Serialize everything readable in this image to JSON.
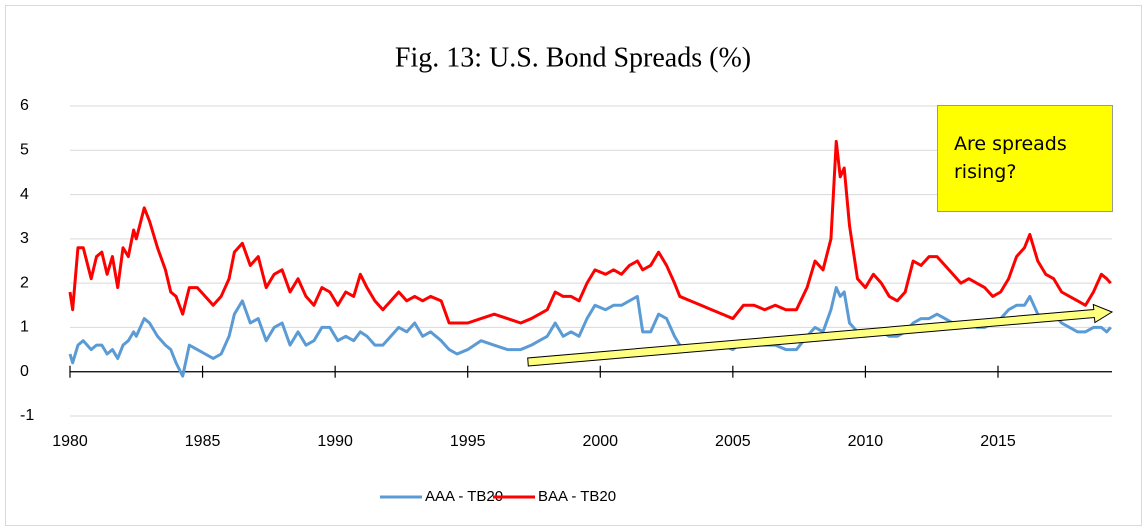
{
  "chart_data": {
    "type": "line",
    "title": "Fig. 13: U.S. Bond Spreads (%)",
    "annotation": "Are spreads rising?",
    "x": [
      1980.0,
      1980.1,
      1980.3,
      1980.5,
      1980.8,
      1981.0,
      1981.2,
      1981.4,
      1981.6,
      1981.8,
      1982.0,
      1982.2,
      1982.4,
      1982.5,
      1982.8,
      1983.0,
      1983.3,
      1983.6,
      1983.8,
      1984.0,
      1984.25,
      1984.5,
      1984.8,
      1985.1,
      1985.4,
      1985.7,
      1986.0,
      1986.2,
      1986.5,
      1986.8,
      1987.1,
      1987.4,
      1987.7,
      1988.0,
      1988.3,
      1988.6,
      1988.9,
      1989.2,
      1989.5,
      1989.8,
      1990.1,
      1990.4,
      1990.7,
      1990.95,
      1991.2,
      1991.5,
      1991.8,
      1992.1,
      1992.4,
      1992.7,
      1993.0,
      1993.3,
      1993.6,
      1994.0,
      1994.3,
      1994.6,
      1995.0,
      1995.5,
      1996.0,
      1996.5,
      1997.0,
      1997.4,
      1997.7,
      1998.0,
      1998.3,
      1998.6,
      1998.9,
      1999.2,
      1999.5,
      1999.8,
      2000.2,
      2000.5,
      2000.8,
      2001.1,
      2001.4,
      2001.6,
      2001.9,
      2002.2,
      2002.5,
      2002.8,
      2003.0,
      2003.4,
      2003.8,
      2004.2,
      2004.6,
      2005.0,
      2005.4,
      2005.8,
      2006.2,
      2006.6,
      2007.0,
      2007.4,
      2007.8,
      2008.1,
      2008.4,
      2008.7,
      2008.9,
      2009.05,
      2009.2,
      2009.4,
      2009.7,
      2010.0,
      2010.3,
      2010.6,
      2010.9,
      2011.2,
      2011.5,
      2011.8,
      2012.1,
      2012.4,
      2012.7,
      2013.0,
      2013.3,
      2013.6,
      2013.9,
      2014.2,
      2014.5,
      2014.8,
      2015.1,
      2015.4,
      2015.7,
      2016.0,
      2016.2,
      2016.5,
      2016.8,
      2017.1,
      2017.4,
      2017.7,
      2018.0,
      2018.3,
      2018.6,
      2018.9,
      2019.1,
      2019.25
    ],
    "series": [
      {
        "name": "AAA - TB20",
        "color": "#5b9bd5",
        "values": [
          0.4,
          0.2,
          0.6,
          0.7,
          0.5,
          0.6,
          0.6,
          0.4,
          0.5,
          0.3,
          0.6,
          0.7,
          0.9,
          0.8,
          1.2,
          1.1,
          0.8,
          0.6,
          0.5,
          0.2,
          -0.1,
          0.6,
          0.5,
          0.4,
          0.3,
          0.4,
          0.8,
          1.3,
          1.6,
          1.1,
          1.2,
          0.7,
          1.0,
          1.1,
          0.6,
          0.9,
          0.6,
          0.7,
          1.0,
          1.0,
          0.7,
          0.8,
          0.7,
          0.9,
          0.8,
          0.6,
          0.6,
          0.8,
          1.0,
          0.9,
          1.1,
          0.8,
          0.9,
          0.7,
          0.5,
          0.4,
          0.5,
          0.7,
          0.6,
          0.5,
          0.5,
          0.6,
          0.7,
          0.8,
          1.1,
          0.8,
          0.9,
          0.8,
          1.2,
          1.5,
          1.4,
          1.5,
          1.5,
          1.6,
          1.7,
          0.9,
          0.9,
          1.3,
          1.2,
          0.8,
          0.6,
          0.5,
          0.6,
          0.6,
          0.6,
          0.5,
          0.7,
          0.6,
          0.6,
          0.6,
          0.5,
          0.5,
          0.8,
          1.0,
          0.9,
          1.4,
          1.9,
          1.7,
          1.8,
          1.1,
          0.9,
          0.8,
          0.9,
          0.9,
          0.8,
          0.8,
          0.9,
          1.1,
          1.2,
          1.2,
          1.3,
          1.2,
          1.1,
          1.1,
          1.1,
          1.0,
          1.0,
          1.1,
          1.2,
          1.4,
          1.5,
          1.5,
          1.7,
          1.3,
          1.2,
          1.3,
          1.1,
          1.0,
          0.9,
          0.9,
          1.0,
          1.0,
          0.9,
          1.0
        ]
      },
      {
        "name": "BAA - TB20",
        "color": "#ff0000",
        "values": [
          1.8,
          1.4,
          2.8,
          2.8,
          2.1,
          2.6,
          2.7,
          2.2,
          2.6,
          1.9,
          2.8,
          2.6,
          3.2,
          3.0,
          3.7,
          3.4,
          2.8,
          2.3,
          1.8,
          1.7,
          1.3,
          1.9,
          1.9,
          1.7,
          1.5,
          1.7,
          2.1,
          2.7,
          2.9,
          2.4,
          2.6,
          1.9,
          2.2,
          2.3,
          1.8,
          2.1,
          1.7,
          1.5,
          1.9,
          1.8,
          1.5,
          1.8,
          1.7,
          2.2,
          1.9,
          1.6,
          1.4,
          1.6,
          1.8,
          1.6,
          1.7,
          1.6,
          1.7,
          1.6,
          1.1,
          1.1,
          1.1,
          1.2,
          1.3,
          1.2,
          1.1,
          1.2,
          1.3,
          1.4,
          1.8,
          1.7,
          1.7,
          1.6,
          2.0,
          2.3,
          2.2,
          2.3,
          2.2,
          2.4,
          2.5,
          2.3,
          2.4,
          2.7,
          2.4,
          2.0,
          1.7,
          1.6,
          1.5,
          1.4,
          1.3,
          1.2,
          1.5,
          1.5,
          1.4,
          1.5,
          1.4,
          1.4,
          1.9,
          2.5,
          2.3,
          3.0,
          5.2,
          4.4,
          4.6,
          3.3,
          2.1,
          1.9,
          2.2,
          2.0,
          1.7,
          1.6,
          1.8,
          2.5,
          2.4,
          2.6,
          2.6,
          2.4,
          2.2,
          2.0,
          2.1,
          2.0,
          1.9,
          1.7,
          1.8,
          2.1,
          2.6,
          2.8,
          3.1,
          2.5,
          2.2,
          2.1,
          1.8,
          1.7,
          1.6,
          1.5,
          1.8,
          2.2,
          2.1,
          2.0
        ]
      }
    ],
    "xlim": [
      1980,
      2019.3
    ],
    "xticks": [
      1980,
      1985,
      1990,
      1995,
      2000,
      2005,
      2010,
      2015
    ],
    "ylim": [
      -1,
      6
    ],
    "yticks": [
      -1,
      0,
      1,
      2,
      3,
      4,
      5,
      6
    ],
    "grid": true,
    "legend": "bottom"
  }
}
